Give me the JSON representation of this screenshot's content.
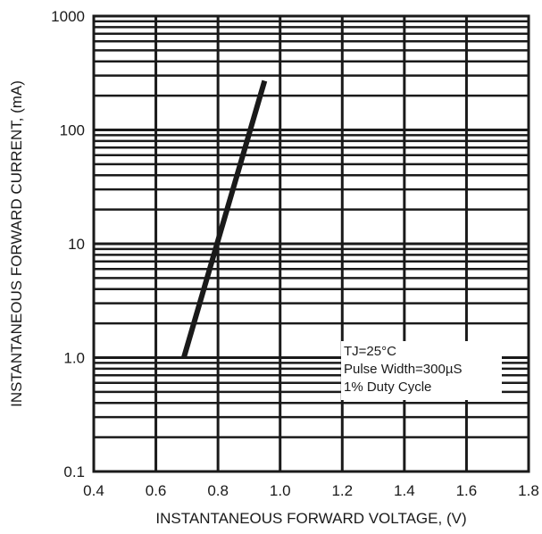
{
  "chart_data": {
    "type": "line",
    "title": "",
    "xlabel": "INSTANTANEOUS FORWARD VOLTAGE, (V)",
    "ylabel": "INSTANTANEOUS FORWARD CURRENT, (mA)",
    "x_scale": "linear",
    "y_scale": "log",
    "xlim": [
      0.4,
      1.8
    ],
    "ylim": [
      0.1,
      1000
    ],
    "x_ticks": [
      {
        "value": 0.4,
        "label": "0.4"
      },
      {
        "value": 0.6,
        "label": "0.6"
      },
      {
        "value": 0.8,
        "label": "0.8"
      },
      {
        "value": 1.0,
        "label": "1.0"
      },
      {
        "value": 1.2,
        "label": "1.2"
      },
      {
        "value": 1.4,
        "label": "1.4"
      },
      {
        "value": 1.6,
        "label": "1.6"
      },
      {
        "value": 1.8,
        "label": "1.8"
      }
    ],
    "y_ticks": [
      {
        "value": 0.1,
        "label": "0.1"
      },
      {
        "value": 1,
        "label": "1.0"
      },
      {
        "value": 10,
        "label": "10"
      },
      {
        "value": 100,
        "label": "100"
      },
      {
        "value": 1000,
        "label": "1000"
      }
    ],
    "grid": true,
    "series": [
      {
        "x": [
          0.69,
          0.95
        ],
        "y": [
          1.0,
          270
        ],
        "color": "#1a1a1a"
      }
    ],
    "annotation": {
      "lines": [
        "TJ=25°C",
        "Pulse Width=300µS",
        "1% Duty Cycle"
      ],
      "position": "bottom-right"
    }
  }
}
